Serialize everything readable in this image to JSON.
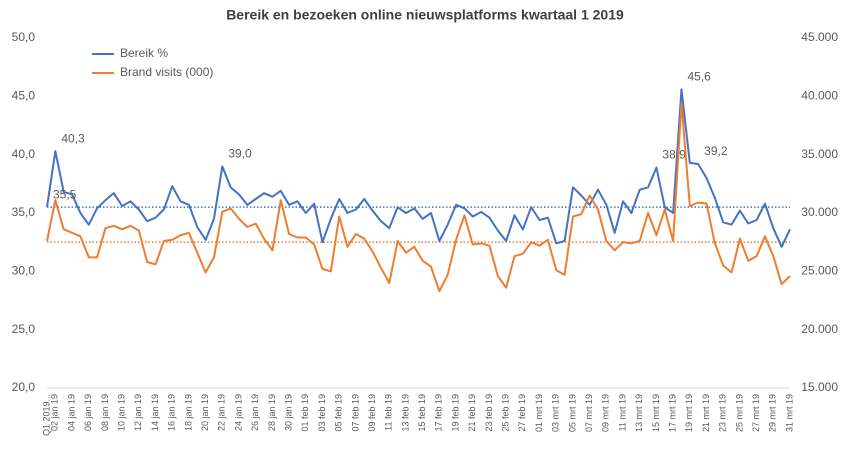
{
  "chart_data": {
    "type": "line",
    "title": "Bereik en bezoeken online nieuwsplatforms kwartaal 1 2019",
    "categories": [
      "Q1 2019...",
      "02 jan 19",
      null,
      "04 jan 19",
      null,
      "06 jan 19",
      null,
      "08 jan 19",
      null,
      "10 jan 19",
      null,
      "12 jan 19",
      null,
      "14 jan 19",
      null,
      "16 jan 19",
      null,
      "18 jan 19",
      null,
      "20 jan 19",
      null,
      "22 jan 19",
      null,
      "24 jan 19",
      null,
      "26 jan 19",
      null,
      "28 jan 19",
      null,
      "30 jan 19",
      null,
      "01 feb 19",
      null,
      "03 feb 19",
      null,
      "05 feb 19",
      null,
      "07 feb 19",
      null,
      "09 feb 19",
      null,
      "11 feb 19",
      null,
      "13 feb 19",
      null,
      "15 feb 19",
      null,
      "17 feb 19",
      null,
      "19 feb 19",
      null,
      "21 feb 19",
      null,
      "23 feb 19",
      null,
      "25 feb 19",
      null,
      "27 feb 19",
      null,
      "01 mrt 19",
      null,
      "03 mrt 19",
      null,
      "05 mrt 19",
      null,
      "07 mrt 19",
      null,
      "09 mrt 19",
      null,
      "11 mrt 19",
      null,
      "13 mrt 19",
      null,
      "15 mrt 19",
      null,
      "17 mrt 19",
      null,
      "19 mrt 19",
      null,
      "21 mrt 19",
      null,
      "23 mrt 19",
      null,
      "25 mrt 19",
      null,
      "27 mrt 19",
      null,
      "29 mrt 19",
      null,
      "31 mrt 19"
    ],
    "series": [
      {
        "name": "Bereik %",
        "color": "#4472c4",
        "axis": "y",
        "values": [
          35.5,
          40.3,
          36.8,
          36.6,
          35.0,
          34.0,
          35.4,
          36.1,
          36.7,
          35.6,
          36.0,
          35.3,
          34.3,
          34.6,
          35.3,
          37.3,
          36.0,
          35.7,
          33.8,
          32.7,
          34.5,
          39.0,
          37.2,
          36.6,
          35.7,
          36.2,
          36.7,
          36.4,
          36.9,
          35.7,
          36.0,
          35.0,
          35.8,
          32.5,
          34.5,
          36.2,
          35.0,
          35.3,
          36.2,
          35.2,
          34.3,
          33.7,
          35.5,
          35.0,
          35.4,
          34.5,
          35.0,
          32.6,
          34.0,
          35.7,
          35.4,
          34.7,
          35.1,
          34.6,
          33.5,
          32.6,
          34.8,
          33.6,
          35.5,
          34.4,
          34.6,
          32.4,
          32.6,
          37.2,
          36.5,
          35.7,
          37.0,
          35.7,
          33.3,
          36.0,
          35.0,
          37.0,
          37.2,
          38.9,
          35.5,
          35.0,
          45.6,
          39.3,
          39.2,
          38.0,
          36.3,
          34.2,
          34.0,
          35.2,
          34.1,
          34.4,
          35.8,
          33.7,
          32.1,
          33.6
        ],
        "value_labels": [
          "35,5",
          "40,3",
          null,
          null,
          null,
          null,
          null,
          null,
          null,
          null,
          null,
          null,
          null,
          null,
          null,
          null,
          null,
          null,
          null,
          null,
          null,
          "39,0",
          null,
          null,
          null,
          null,
          null,
          null,
          null,
          null,
          null,
          null,
          null,
          null,
          null,
          null,
          null,
          null,
          null,
          null,
          null,
          null,
          null,
          null,
          null,
          null,
          null,
          null,
          null,
          null,
          null,
          null,
          null,
          null,
          null,
          null,
          null,
          null,
          null,
          null,
          null,
          null,
          null,
          null,
          null,
          null,
          null,
          null,
          null,
          null,
          null,
          null,
          null,
          "38,9",
          null,
          null,
          "45,6",
          null,
          "39,2",
          null,
          null,
          null,
          null,
          null,
          null,
          null,
          null,
          null,
          null,
          null
        ]
      },
      {
        "name": "Brand visits (000)",
        "color": "#ed7d31",
        "axis": "y2",
        "values": [
          27600,
          31100,
          28600,
          28300,
          28000,
          26200,
          26200,
          28700,
          28900,
          28600,
          28900,
          28500,
          25800,
          25600,
          27600,
          27700,
          28100,
          28300,
          26600,
          24900,
          26200,
          30100,
          30400,
          29500,
          28800,
          29100,
          27800,
          26800,
          31100,
          28200,
          27900,
          27900,
          27300,
          25200,
          25000,
          29700,
          27100,
          28200,
          27800,
          26700,
          25300,
          24000,
          27600,
          26600,
          27100,
          25900,
          25400,
          23300,
          24700,
          27700,
          29800,
          27300,
          27400,
          27200,
          24600,
          23600,
          26300,
          26500,
          27500,
          27200,
          27700,
          25100,
          24700,
          29700,
          29900,
          31500,
          30300,
          27600,
          26800,
          27500,
          27400,
          27600,
          30000,
          28100,
          30300,
          27600,
          39400,
          30600,
          30900,
          30800,
          27400,
          25500,
          24900,
          27800,
          25900,
          26300,
          28000,
          26300,
          23900,
          24600
        ]
      }
    ],
    "reference_lines": [
      {
        "axis": "y",
        "value": 35.5,
        "color": "#4472c4"
      },
      {
        "axis": "y2",
        "value": 27500,
        "color": "#ed7d31"
      }
    ],
    "ylim": [
      20,
      50
    ],
    "yticks": [
      {
        "value": 20,
        "label": "20,0"
      },
      {
        "value": 25,
        "label": "25,0"
      },
      {
        "value": 30,
        "label": "30,0"
      },
      {
        "value": 35,
        "label": "35,0"
      },
      {
        "value": 40,
        "label": "40,0"
      },
      {
        "value": 45,
        "label": "45,0"
      },
      {
        "value": 50,
        "label": "50,0"
      }
    ],
    "y2lim": [
      15000,
      45000
    ],
    "y2ticks": [
      {
        "value": 15000,
        "label": "15.000"
      },
      {
        "value": 20000,
        "label": "20.000"
      },
      {
        "value": 25000,
        "label": "25.000"
      },
      {
        "value": 30000,
        "label": "30.000"
      },
      {
        "value": 35000,
        "label": "35.000"
      },
      {
        "value": 40000,
        "label": "40.000"
      },
      {
        "value": 45000,
        "label": "45.000"
      }
    ],
    "grid": false,
    "legend": "top-left"
  }
}
